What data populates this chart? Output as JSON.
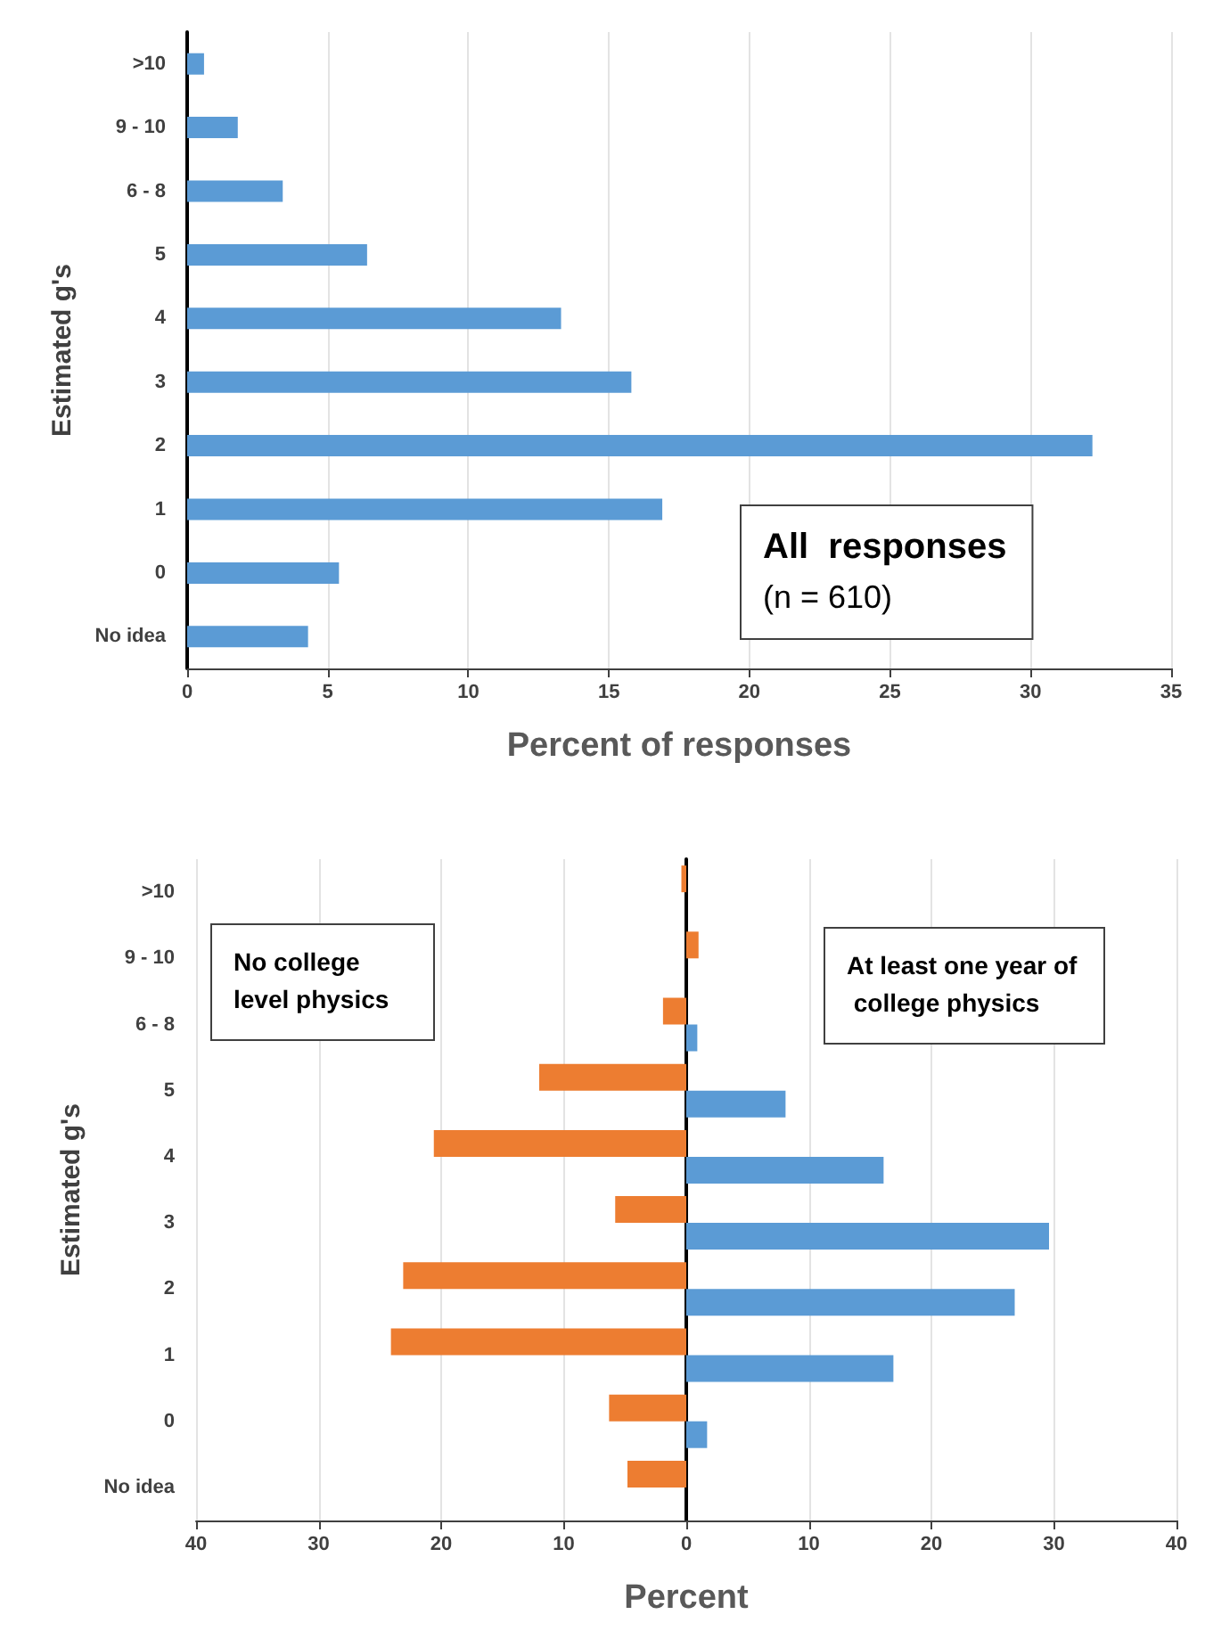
{
  "chart_data": [
    {
      "type": "bar",
      "orientation": "horizontal",
      "categories": [
        ">10",
        "9 - 10",
        "6 - 8",
        "5",
        "4",
        "3",
        "2",
        "1",
        "0",
        "No idea"
      ],
      "series": [
        {
          "color": "#5b9bd5",
          "values": [
            0.6,
            1.8,
            3.4,
            6.4,
            13.3,
            15.8,
            32.2,
            16.9,
            5.4,
            4.3
          ]
        }
      ],
      "xlim": [
        0,
        35
      ],
      "xticks": [
        0,
        5,
        10,
        15,
        20,
        25,
        30,
        35
      ],
      "xlabel": "Percent of responses",
      "ylabel": "Estimated g's",
      "grid": "x",
      "annotations": [
        "All  responses",
        "(n = 610)"
      ]
    },
    {
      "type": "bar",
      "orientation": "horizontal",
      "categories": [
        ">10",
        "9 - 10",
        "6 - 8",
        "5",
        "4",
        "3",
        "2",
        "1",
        "0",
        "No idea"
      ],
      "series": [
        {
          "color": "#ed7d31",
          "values": [
            -0.4,
            1.0,
            -1.9,
            -12.0,
            -20.6,
            -5.8,
            -23.1,
            -24.1,
            -6.3,
            -4.8
          ]
        },
        {
          "color": "#5b9bd5",
          "values": [
            null,
            null,
            0.9,
            8.1,
            16.1,
            29.6,
            26.8,
            16.9,
            1.7,
            null
          ]
        }
      ],
      "xlim": [
        -40,
        40
      ],
      "xticks": [
        {
          "value": -40,
          "label": "40"
        },
        {
          "value": -30,
          "label": "30"
        },
        {
          "value": -20,
          "label": "20"
        },
        {
          "value": -10,
          "label": "10"
        },
        0,
        10,
        20,
        30,
        40
      ],
      "xlabel": "Percent",
      "ylabel": "Estimated g's",
      "grid": "x",
      "annotations": [
        "No college level physics",
        "At least one year of college physics"
      ]
    }
  ]
}
